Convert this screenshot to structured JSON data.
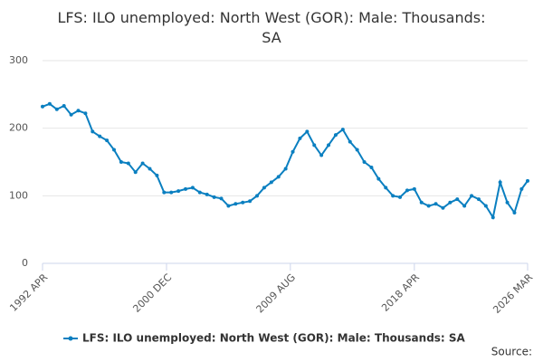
{
  "chart_data": {
    "type": "line",
    "title": "LFS: ILO unemployed: North West (GOR): Male: Thousands: SA",
    "x": [
      1992.25,
      1992.75,
      1993.25,
      1993.75,
      1994.25,
      1994.75,
      1995.25,
      1995.75,
      1996.25,
      1996.75,
      1997.25,
      1997.75,
      1998.25,
      1998.75,
      1999.25,
      1999.75,
      2000.25,
      2000.75,
      2001.25,
      2001.75,
      2002.25,
      2002.75,
      2003.25,
      2003.75,
      2004.25,
      2004.75,
      2005.25,
      2005.75,
      2006.25,
      2006.75,
      2007.25,
      2007.75,
      2008.25,
      2008.75,
      2009.25,
      2009.75,
      2010.25,
      2010.75,
      2011.25,
      2011.75,
      2012.25,
      2012.75,
      2013.25,
      2013.75,
      2014.25,
      2014.75,
      2015.25,
      2015.75,
      2016.25,
      2016.75,
      2017.25,
      2017.75,
      2018.25,
      2018.75,
      2019.25,
      2019.75,
      2020.25,
      2020.75,
      2021.25,
      2021.75,
      2022.25,
      2022.75,
      2023.25,
      2023.75,
      2024.25,
      2024.75,
      2025.25,
      2025.75,
      2026.17
    ],
    "series": [
      {
        "name": "LFS: ILO unemployed: North West (GOR): Male: Thousands: SA",
        "color": "#0a7fc0",
        "values": [
          232,
          236,
          228,
          233,
          220,
          226,
          222,
          195,
          188,
          182,
          168,
          150,
          148,
          135,
          148,
          140,
          130,
          105,
          105,
          107,
          110,
          112,
          105,
          102,
          98,
          96,
          85,
          88,
          90,
          92,
          100,
          112,
          120,
          128,
          140,
          165,
          185,
          195,
          175,
          160,
          175,
          190,
          198,
          180,
          168,
          150,
          142,
          125,
          112,
          100,
          98,
          108,
          110,
          90,
          85,
          88,
          82,
          90,
          95,
          85,
          100,
          95,
          85,
          68,
          120,
          90,
          75,
          110,
          122
        ]
      }
    ],
    "xlim": [
      1992.25,
      2026.17
    ],
    "xticks": [
      {
        "value": 1992.25,
        "label": "1992 APR"
      },
      {
        "value": 2000.92,
        "label": "2000 DEC"
      },
      {
        "value": 2009.58,
        "label": "2009 AUG"
      },
      {
        "value": 2018.25,
        "label": "2018 APR"
      },
      {
        "value": 2026.17,
        "label": "2026 MAR"
      }
    ],
    "ylim": [
      0,
      300
    ],
    "yticks": [
      0,
      100,
      200,
      300
    ],
    "grid": true,
    "source": "Source:"
  }
}
